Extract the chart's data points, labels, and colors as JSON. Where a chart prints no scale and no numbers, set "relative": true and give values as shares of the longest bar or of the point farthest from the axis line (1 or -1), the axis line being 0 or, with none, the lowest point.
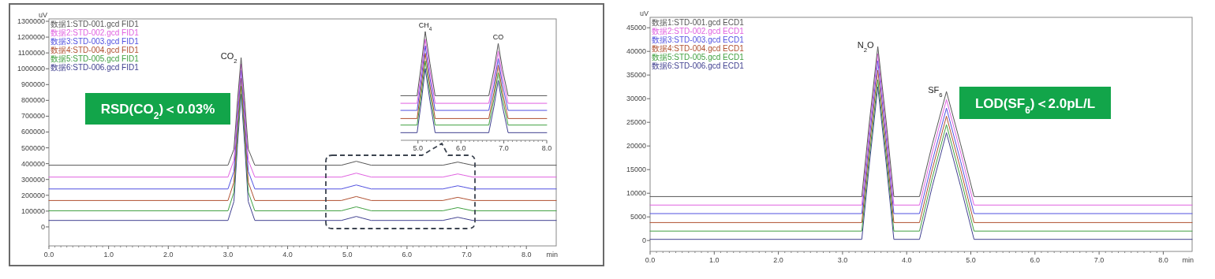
{
  "chart_data": [
    {
      "type": "line",
      "xlabel": "min",
      "ylabel": "uV",
      "legend": "top left",
      "grid": false,
      "marker": "none",
      "line_style": "solid",
      "xlim": [
        0,
        8.5
      ],
      "ylim": [
        -120000,
        1315000
      ],
      "xticks": [
        {
          "value": 0,
          "label": "0.0"
        },
        {
          "value": 1,
          "label": "1.0"
        },
        {
          "value": 2,
          "label": "2.0"
        },
        {
          "value": 3,
          "label": "3.0"
        },
        {
          "value": 4,
          "label": "4.0"
        },
        {
          "value": 5,
          "label": "5.0"
        },
        {
          "value": 6,
          "label": "6.0"
        },
        {
          "value": 7,
          "label": "7.0"
        },
        {
          "value": 8,
          "label": "8.0"
        }
      ],
      "yticks": [
        0,
        100000,
        200000,
        300000,
        400000,
        500000,
        600000,
        700000,
        800000,
        900000,
        1000000,
        1100000,
        1200000,
        1300000
      ],
      "x": [
        0,
        3.0,
        3.1,
        3.16,
        3.22,
        3.28,
        3.34,
        3.45,
        4.9,
        5.05,
        5.15,
        5.25,
        5.4,
        6.6,
        6.75,
        6.85,
        6.95,
        7.1,
        8.5
      ],
      "series": [
        {
          "name": "数据1:STD-001.gcd FID1",
          "color": "#555555",
          "values": [
            390000,
            390000,
            492000,
            798000,
            1070000,
            798000,
            492000,
            390000,
            390000,
            405000,
            415000,
            405000,
            390000,
            390000,
            402000,
            410000,
            402000,
            390000,
            390000
          ]
        },
        {
          "name": "数据2:STD-002.gcd FID1",
          "color": "#e060e0",
          "values": [
            315000,
            315000,
            422000,
            744000,
            1030000,
            744000,
            422000,
            315000,
            315000,
            330000,
            340000,
            330000,
            315000,
            315000,
            327000,
            335000,
            327000,
            315000,
            315000
          ]
        },
        {
          "name": "数据3:STD-003.gcd FID1",
          "color": "#5050e0",
          "values": [
            240000,
            240000,
            352000,
            690000,
            990000,
            690000,
            352000,
            240000,
            240000,
            255000,
            265000,
            255000,
            240000,
            240000,
            252000,
            260000,
            252000,
            240000,
            240000
          ]
        },
        {
          "name": "数据4:STD-004.gcd FID1",
          "color": "#b05030",
          "values": [
            167000,
            167000,
            283000,
            631000,
            940000,
            631000,
            283000,
            167000,
            167000,
            182000,
            192000,
            182000,
            167000,
            167000,
            179000,
            187000,
            179000,
            167000,
            167000
          ]
        },
        {
          "name": "数据5:STD-005.gcd FID1",
          "color": "#40a040",
          "values": [
            102000,
            102000,
            220000,
            575000,
            890000,
            575000,
            220000,
            102000,
            102000,
            117000,
            127000,
            117000,
            102000,
            102000,
            114000,
            122000,
            114000,
            102000,
            102000
          ]
        },
        {
          "name": "数据6:STD-006.gcd FID1",
          "color": "#404090",
          "values": [
            41000,
            41000,
            161000,
            520000,
            840000,
            520000,
            161000,
            41000,
            41000,
            56000,
            66000,
            56000,
            41000,
            41000,
            53000,
            61000,
            53000,
            41000,
            41000
          ]
        }
      ],
      "annotations": [
        {
          "text": "CO$_{2}$",
          "x": 3.22,
          "y": 1070000
        },
        "RSD(CO$_{2}$)＜0.03%"
      ]
    },
    {
      "type": "line",
      "relative": true,
      "tick_labels": "x",
      "grid": false,
      "marker": "none",
      "line_style": "solid",
      "xlim": [
        4.6,
        8.0
      ],
      "xticks": [
        {
          "value": 5,
          "label": "5.0"
        },
        {
          "value": 6,
          "label": "6.0"
        },
        {
          "value": 7,
          "label": "7.0"
        },
        {
          "value": 8,
          "label": "8.0"
        }
      ],
      "x": [
        4.6,
        4.98,
        5.08,
        5.17,
        5.28,
        5.4,
        6.65,
        6.77,
        6.87,
        6.97,
        7.1,
        8.0
      ],
      "series": [
        {
          "color": "#555555",
          "values": [
            0.41,
            0.41,
            0.705,
            1.0,
            0.705,
            0.41,
            0.41,
            0.65,
            0.89,
            0.65,
            0.41,
            0.41
          ]
        },
        {
          "color": "#e060e0",
          "values": [
            0.34,
            0.34,
            0.635,
            0.93,
            0.635,
            0.34,
            0.34,
            0.58,
            0.82,
            0.58,
            0.34,
            0.34
          ]
        },
        {
          "color": "#5050e0",
          "values": [
            0.275,
            0.275,
            0.57,
            0.87,
            0.57,
            0.275,
            0.275,
            0.51,
            0.75,
            0.51,
            0.275,
            0.275
          ]
        },
        {
          "color": "#b05030",
          "values": [
            0.2,
            0.2,
            0.5,
            0.8,
            0.5,
            0.2,
            0.2,
            0.44,
            0.69,
            0.44,
            0.2,
            0.2
          ]
        },
        {
          "color": "#40a040",
          "values": [
            0.14,
            0.14,
            0.43,
            0.73,
            0.43,
            0.14,
            0.14,
            0.38,
            0.62,
            0.38,
            0.14,
            0.14
          ]
        },
        {
          "color": "#404090",
          "values": [
            0.07,
            0.07,
            0.36,
            0.66,
            0.36,
            0.07,
            0.07,
            0.31,
            0.55,
            0.31,
            0.07,
            0.07
          ]
        }
      ],
      "annotations": [
        {
          "text": "CH$_{4}$",
          "x": 5.17,
          "y": 1.0
        },
        {
          "text": "CO",
          "x": 6.87,
          "y": 0.89
        }
      ]
    },
    {
      "type": "line",
      "xlabel": "min",
      "ylabel": "uV",
      "legend": "top left",
      "grid": false,
      "marker": "none",
      "line_style": "solid",
      "xlim": [
        0,
        8.45
      ],
      "ylim": [
        -2300,
        47200
      ],
      "xticks": [
        {
          "value": 0,
          "label": "0.0"
        },
        {
          "value": 1,
          "label": "1.0"
        },
        {
          "value": 2,
          "label": "2.0"
        },
        {
          "value": 3,
          "label": "3.0"
        },
        {
          "value": 4,
          "label": "4.0"
        },
        {
          "value": 5,
          "label": "5.0"
        },
        {
          "value": 6,
          "label": "6.0"
        },
        {
          "value": 7,
          "label": "7.0"
        },
        {
          "value": 8,
          "label": "8.0"
        }
      ],
      "yticks": [
        0,
        5000,
        10000,
        15000,
        20000,
        25000,
        30000,
        35000,
        40000,
        45000
      ],
      "x": [
        0,
        3.3,
        3.42,
        3.55,
        3.68,
        3.8,
        4.2,
        4.4,
        4.62,
        4.84,
        5.05,
        8.45
      ],
      "series": [
        {
          "name": "数据1:STD-001.gcd ECD1",
          "color": "#555555",
          "values": [
            9300,
            9300,
            25200,
            41000,
            25200,
            9300,
            9300,
            20400,
            31500,
            20400,
            9300,
            9300
          ]
        },
        {
          "name": "数据2:STD-002.gcd ECD1",
          "color": "#e060e0",
          "values": [
            7500,
            7500,
            23500,
            39500,
            23500,
            7500,
            7500,
            18700,
            29800,
            18700,
            7500,
            7500
          ]
        },
        {
          "name": "数据3:STD-003.gcd ECD1",
          "color": "#5050e0",
          "values": [
            5700,
            5700,
            21800,
            38000,
            21800,
            5700,
            5700,
            16800,
            28000,
            16800,
            5700,
            5700
          ]
        },
        {
          "name": "数据4:STD-004.gcd ECD1",
          "color": "#b05030",
          "values": [
            3800,
            3800,
            19900,
            36000,
            19900,
            3800,
            3800,
            15100,
            26300,
            15100,
            3800,
            3800
          ]
        },
        {
          "name": "数据5:STD-005.gcd ECD1",
          "color": "#40a040",
          "values": [
            2000,
            2000,
            18000,
            34000,
            18000,
            2000,
            2000,
            13300,
            24500,
            13300,
            2000,
            2000
          ]
        },
        {
          "name": "数据6:STD-006.gcd ECD1",
          "color": "#404090",
          "values": [
            250,
            250,
            16400,
            32500,
            16400,
            250,
            250,
            11500,
            22800,
            11500,
            250,
            250
          ]
        }
      ],
      "annotations": [
        {
          "text": "N$_{2}$O",
          "x": 3.55,
          "y": 41000
        },
        {
          "text": "SF$_{6}$",
          "x": 4.62,
          "y": 31500
        },
        "LOD(SF$_{6}$)＜2.0pL/L"
      ]
    }
  ]
}
